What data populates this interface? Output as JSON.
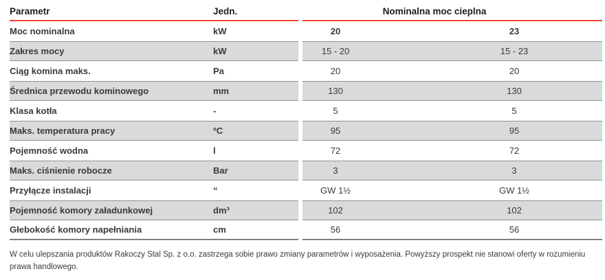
{
  "table": {
    "header": {
      "parametr": "Parametr",
      "jedn": "Jedn.",
      "group": "Nominalna moc cieplna"
    },
    "rows": [
      {
        "label": "Moc nominalna",
        "unit": "kW",
        "v1": "20",
        "v2": "23"
      },
      {
        "label": "Zakres mocy",
        "unit": "kW",
        "v1": "15 - 20",
        "v2": "15 - 23"
      },
      {
        "label": "Ciąg komina maks.",
        "unit": "Pa",
        "v1": "20",
        "v2": "20"
      },
      {
        "label": "Średnica przewodu kominowego",
        "unit": "mm",
        "v1": "130",
        "v2": "130"
      },
      {
        "label": "Klasa kotła",
        "unit": "-",
        "v1": "5",
        "v2": "5"
      },
      {
        "label": "Maks. temperatura pracy",
        "unit": "ºC",
        "v1": "95",
        "v2": "95"
      },
      {
        "label": "Pojemność wodna",
        "unit": "l",
        "v1": "72",
        "v2": "72"
      },
      {
        "label": "Maks. ciśnienie robocze",
        "unit": "Bar",
        "v1": "3",
        "v2": "3"
      },
      {
        "label": "Przyłącze instalacji",
        "unit": "“",
        "v1": "GW 1½",
        "v2": "GW 1½"
      },
      {
        "label": "Pojemność komory załadunkowej",
        "unit": "dm³",
        "v1": "102",
        "v2": "102"
      },
      {
        "label": "Głebokość komory napełniania",
        "unit": "cm",
        "v1": "56",
        "v2": "56"
      }
    ]
  },
  "footer": {
    "text": "W celu ulepszania produktów Rakoczy Stal Sp. z o.o. zastrzega sobie prawo zmiany parametrów i wyposażenia. Powyższy prospekt nie stanowi oferty w rozumieniu prawa handlowego."
  },
  "colors": {
    "accent_red": "#f04334",
    "row_gray": "#d8dadc",
    "row_separator": "#8e9194",
    "text_dark": "#3a3a39"
  }
}
